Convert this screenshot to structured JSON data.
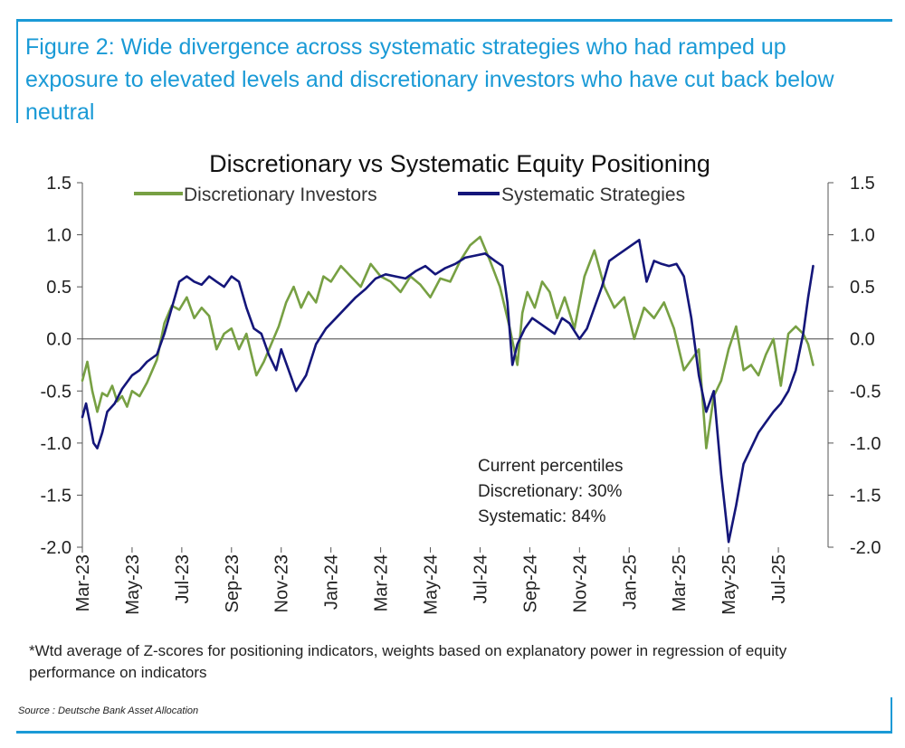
{
  "figure": {
    "title": "Figure 2: Wide divergence across systematic strategies who had ramped up exposure to elevated levels and discretionary investors who have cut back below neutral",
    "footnote": "*Wtd average of Z-scores for positioning indicators, weights based on explanatory power in regression of equity performance on indicators",
    "source": "Source : Deutsche Bank Asset Allocation",
    "accent_color": "#1a9ad6"
  },
  "chart_data": {
    "type": "line",
    "title": "Discretionary  vs Systematic Equity Positioning",
    "xlabel": "",
    "ylabel": "",
    "ylim": [
      -2.0,
      1.5
    ],
    "yticks": [
      1.5,
      1.0,
      0.5,
      0.0,
      -0.5,
      -1.0,
      -1.5,
      -2.0
    ],
    "ytick_labels": [
      "1.5",
      "1.0",
      "0.5",
      "0.0",
      "-0.5",
      "-1.0",
      "-1.5",
      "-2.0"
    ],
    "xlim": [
      0,
      30
    ],
    "x_tick_positions": [
      0,
      2,
      4,
      6,
      8,
      10,
      12,
      14,
      16,
      18,
      20,
      22,
      24,
      26,
      28
    ],
    "x_tick_labels": [
      "Mar-23",
      "May-23",
      "Jul-23",
      "Sep-23",
      "Nov-23",
      "Jan-24",
      "Mar-24",
      "May-24",
      "Jul-24",
      "Sep-24",
      "Nov-24",
      "Jan-25",
      "Mar-25",
      "May-25",
      "Jul-25"
    ],
    "legend_position": "top",
    "annotation": [
      "Current percentiles",
      "Discretionary: 30%",
      "Systematic: 84%"
    ],
    "series": [
      {
        "name": "Discretionary Investors",
        "color": "#77a043",
        "x": [
          0,
          0.2,
          0.4,
          0.6,
          0.8,
          1.0,
          1.2,
          1.4,
          1.6,
          1.8,
          2.0,
          2.3,
          2.6,
          3.0,
          3.3,
          3.6,
          3.9,
          4.2,
          4.5,
          4.8,
          5.1,
          5.4,
          5.7,
          6.0,
          6.3,
          6.6,
          7.0,
          7.3,
          7.6,
          7.9,
          8.2,
          8.5,
          8.8,
          9.1,
          9.4,
          9.7,
          10.0,
          10.4,
          10.8,
          11.2,
          11.6,
          12.0,
          12.4,
          12.8,
          13.2,
          13.6,
          14.0,
          14.4,
          14.8,
          15.2,
          15.6,
          16.0,
          16.4,
          16.8,
          17.2,
          17.5,
          17.7,
          17.9,
          18.2,
          18.5,
          18.8,
          19.1,
          19.4,
          19.8,
          20.2,
          20.6,
          21.0,
          21.4,
          21.8,
          22.2,
          22.6,
          23.0,
          23.4,
          23.8,
          24.2,
          24.5,
          24.8,
          25.1,
          25.4,
          25.7,
          26.0,
          26.3,
          26.6,
          26.9,
          27.2,
          27.5,
          27.8,
          28.1,
          28.4,
          28.7,
          29.0,
          29.2,
          29.4
        ],
        "values": [
          -0.4,
          -0.22,
          -0.5,
          -0.7,
          -0.52,
          -0.55,
          -0.45,
          -0.6,
          -0.55,
          -0.65,
          -0.5,
          -0.55,
          -0.42,
          -0.2,
          0.15,
          0.32,
          0.28,
          0.4,
          0.2,
          0.3,
          0.22,
          -0.1,
          0.05,
          0.1,
          -0.1,
          0.05,
          -0.35,
          -0.22,
          -0.05,
          0.12,
          0.35,
          0.5,
          0.3,
          0.45,
          0.35,
          0.6,
          0.55,
          0.7,
          0.6,
          0.5,
          0.72,
          0.6,
          0.55,
          0.45,
          0.6,
          0.52,
          0.4,
          0.58,
          0.55,
          0.75,
          0.9,
          0.98,
          0.75,
          0.5,
          0.1,
          -0.25,
          0.25,
          0.45,
          0.3,
          0.55,
          0.45,
          0.2,
          0.4,
          0.1,
          0.6,
          0.85,
          0.5,
          0.3,
          0.4,
          0.0,
          0.3,
          0.2,
          0.35,
          0.1,
          -0.3,
          -0.2,
          -0.1,
          -1.05,
          -0.55,
          -0.4,
          -0.1,
          0.12,
          -0.3,
          -0.25,
          -0.35,
          -0.15,
          0.0,
          -0.45,
          0.05,
          0.12,
          0.05,
          -0.05,
          -0.25
        ]
      },
      {
        "name": "Systematic Strategies",
        "color": "#14167a",
        "x": [
          0,
          0.15,
          0.3,
          0.45,
          0.6,
          0.8,
          1.0,
          1.3,
          1.6,
          2.0,
          2.3,
          2.6,
          3.0,
          3.3,
          3.6,
          3.9,
          4.2,
          4.5,
          4.8,
          5.1,
          5.4,
          5.7,
          6.0,
          6.3,
          6.6,
          6.9,
          7.2,
          7.5,
          7.8,
          8.0,
          8.3,
          8.6,
          9.0,
          9.4,
          9.8,
          10.2,
          10.6,
          11.0,
          11.4,
          11.8,
          12.2,
          12.6,
          13.0,
          13.4,
          13.8,
          14.2,
          14.6,
          15.0,
          15.4,
          15.8,
          16.2,
          16.6,
          16.9,
          17.1,
          17.3,
          17.5,
          17.8,
          18.1,
          18.4,
          18.7,
          19.0,
          19.3,
          19.6,
          20.0,
          20.3,
          20.6,
          20.9,
          21.2,
          21.5,
          21.8,
          22.1,
          22.4,
          22.7,
          23.0,
          23.3,
          23.6,
          23.9,
          24.2,
          24.5,
          24.8,
          25.1,
          25.4,
          25.7,
          26.0,
          26.3,
          26.6,
          26.9,
          27.2,
          27.5,
          27.8,
          28.1,
          28.4,
          28.7,
          29.0,
          29.2,
          29.4
        ],
        "values": [
          -0.75,
          -0.62,
          -0.8,
          -1.0,
          -1.05,
          -0.9,
          -0.7,
          -0.62,
          -0.48,
          -0.35,
          -0.3,
          -0.22,
          -0.15,
          0.05,
          0.3,
          0.55,
          0.6,
          0.55,
          0.52,
          0.6,
          0.55,
          0.5,
          0.6,
          0.55,
          0.3,
          0.1,
          0.05,
          -0.15,
          -0.3,
          -0.1,
          -0.3,
          -0.5,
          -0.35,
          -0.05,
          0.1,
          0.2,
          0.3,
          0.4,
          0.48,
          0.58,
          0.62,
          0.6,
          0.58,
          0.65,
          0.7,
          0.62,
          0.68,
          0.72,
          0.78,
          0.8,
          0.82,
          0.75,
          0.7,
          0.35,
          -0.25,
          -0.05,
          0.1,
          0.2,
          0.15,
          0.1,
          0.05,
          0.2,
          0.15,
          0.0,
          0.1,
          0.3,
          0.5,
          0.75,
          0.8,
          0.85,
          0.9,
          0.95,
          0.55,
          0.75,
          0.72,
          0.7,
          0.72,
          0.6,
          0.2,
          -0.35,
          -0.7,
          -0.5,
          -1.3,
          -1.95,
          -1.6,
          -1.2,
          -1.05,
          -0.9,
          -0.8,
          -0.7,
          -0.62,
          -0.5,
          -0.3,
          0.05,
          0.4,
          0.7
        ]
      }
    ]
  }
}
